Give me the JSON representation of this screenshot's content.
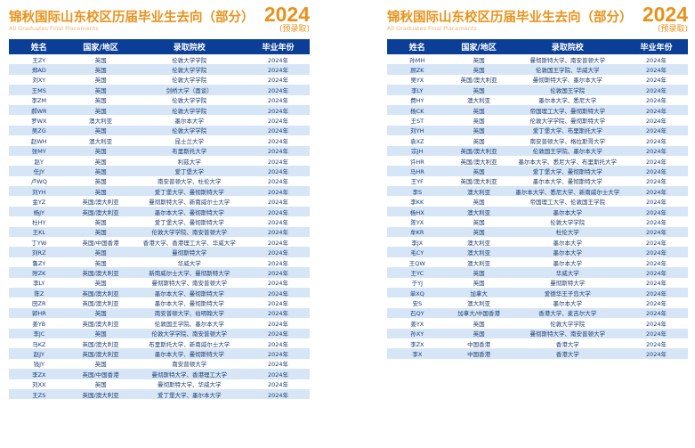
{
  "header": {
    "title": "锦秋国际山东校区历届毕业生去向（部分）",
    "subtitle": "All Graduates Final Placements",
    "year": "2024",
    "note": "(预录取)"
  },
  "columns": [
    "姓名",
    "国家/地区",
    "录取院校",
    "毕业年份"
  ],
  "left_rows": [
    [
      "王ZY",
      "英国",
      "伦敦大学学院",
      "2024年"
    ],
    [
      "郑AD",
      "英国",
      "伦敦大学学院",
      "2024年"
    ],
    [
      "刘XY",
      "英国",
      "伦敦大学学院",
      "2024年"
    ],
    [
      "王MS",
      "英国",
      "剑桥大学（面谈）",
      "2024年"
    ],
    [
      "李ZM",
      "英国",
      "伦敦大学学院",
      "2024年"
    ],
    [
      "郝WR",
      "英国",
      "伦敦大学学院",
      "2024年"
    ],
    [
      "罗WX",
      "澳大利亚",
      "墨尔本大学",
      "2024年"
    ],
    [
      "吴ZG",
      "英国",
      "伦敦大学学院",
      "2024年"
    ],
    [
      "赵WH",
      "澳大利亚",
      "昆士兰大学",
      "2024年"
    ],
    [
      "张MY",
      "英国",
      "布里斯托大学",
      "2024年"
    ],
    [
      "赵Y",
      "英国",
      "利兹大学",
      "2024年"
    ],
    [
      "任JY",
      "英国",
      "爱丁堡大学",
      "2024年"
    ],
    [
      "卢WQ",
      "英国",
      "南安普顿大学、杜伦大学",
      "2024年"
    ],
    [
      "刘YH",
      "英国",
      "爱丁堡大学、曼彻斯特大学",
      "2024年"
    ],
    [
      "金YZ",
      "英国/澳大利亚",
      "曼彻斯特大学、新南威尔士大学",
      "2024年"
    ],
    [
      "杨JY",
      "英国/澳大利亚",
      "墨尔本大学、曼彻斯特大学",
      "2024年"
    ],
    [
      "杜HY",
      "英国",
      "爱丁堡大学、曼彻斯特大学",
      "2024年"
    ],
    [
      "王KL",
      "英国",
      "伦敦大学学院、南安普顿大学",
      "2024年"
    ],
    [
      "丁YW",
      "英国/中国香港",
      "香港大学、香港理工大学、华威大学",
      "2024年"
    ],
    [
      "刘RZ",
      "英国",
      "曼彻斯特大学",
      "2024年"
    ],
    [
      "鲁ZY",
      "英国",
      "华威大学",
      "2024年"
    ],
    [
      "附ZK",
      "英国/澳大利亚",
      "新南威尔士大学、曼彻斯特大学",
      "2024年"
    ],
    [
      "李LY",
      "英国",
      "曼彻斯特大学、南安普顿大学",
      "2024年"
    ],
    [
      "陈Z",
      "英国/澳大利亚",
      "墨尔本大学、曼彻斯特大学",
      "2024年"
    ],
    [
      "田ZR",
      "英国/澳大利亚",
      "墨尔本大学、曼彻斯特大学",
      "2024年"
    ],
    [
      "郭HR",
      "英国",
      "南安普顿大学、伯明翰大学",
      "2024年"
    ],
    [
      "姜YB",
      "英国/澳大利亚",
      "伦敦国王学院、墨尔本大学",
      "2024年"
    ],
    [
      "李JC",
      "英国",
      "伦敦大学学院、南安普顿大学",
      "2024年"
    ],
    [
      "马KZ",
      "英国/澳大利亚",
      "布里斯托大学、新南威尔士大学",
      "2024年"
    ],
    [
      "赵JY",
      "英国/澳大利亚",
      "墨尔本大学、曼彻斯特大学",
      "2024年"
    ],
    [
      "钱JY",
      "英国",
      "南安普顿大学",
      "2024年"
    ],
    [
      "李ZX",
      "英国/中国香港",
      "曼彻斯特大学、香港理工大学",
      "2024年"
    ],
    [
      "刘XX",
      "英国",
      "曼彻斯特大学、华威大学",
      "2024年"
    ],
    [
      "王ZS",
      "英国/澳大利亚",
      "爱丁堡大学、墨尔本大学",
      "2024年"
    ]
  ],
  "right_rows": [
    [
      "孙MH",
      "英国",
      "曼彻斯特大学、南安普顿大学",
      "2024年"
    ],
    [
      "顾ZK",
      "英国",
      "伦敦国王学院、华威大学",
      "2024年"
    ],
    [
      "吴YX",
      "英国/澳大利亚",
      "曼彻斯特大学、墨尔本大学",
      "2024年"
    ],
    [
      "李LY",
      "英国",
      "伦敦国王学院",
      "2024年"
    ],
    [
      "费HY",
      "澳大利亚",
      "墨尔本大学、悉尼大学",
      "2024年"
    ],
    [
      "杨CK",
      "英国",
      "帝国理工大学、曼彻斯特大学",
      "2024年"
    ],
    [
      "王ST",
      "英国",
      "伦敦大学学院、曼彻斯特大学",
      "2024年"
    ],
    [
      "刘YH",
      "英国",
      "爱丁堡大学、布里斯托大学",
      "2024年"
    ],
    [
      "袁XZ",
      "英国",
      "南安普顿大学、格拉斯哥大学",
      "2024年"
    ],
    [
      "宗JH",
      "英国/澳大利亚",
      "伦敦国王学院、墨尔本大学",
      "2024年"
    ],
    [
      "许HR",
      "英国/澳大利亚",
      "墨尔本大学、悉尼大学、布里斯托大学",
      "2024年"
    ],
    [
      "马HR",
      "英国",
      "爱丁堡大学、曼彻斯特大学",
      "2024年"
    ],
    [
      "王YF",
      "英国/澳大利亚",
      "墨尔本大学、曼彻斯特大学",
      "2024年"
    ],
    [
      "李S",
      "澳大利亚",
      "墨尔本大学、悉尼大学、新南威尔士大学",
      "2024年"
    ],
    [
      "李KK",
      "英国",
      "帝国理工大学、伦敦国王学院",
      "2024年"
    ],
    [
      "杨HX",
      "澳大利亚",
      "墨尔本大学",
      "2024年"
    ],
    [
      "陈YX",
      "英国",
      "伦敦大学学院",
      "2024年"
    ],
    [
      "牟KR",
      "英国",
      "杜伦大学",
      "2024年"
    ],
    [
      "李JX",
      "澳大利亚",
      "墨尔本大学",
      "2024年"
    ],
    [
      "毛CY",
      "澳大利亚",
      "墨尔本大学",
      "2024年"
    ],
    [
      "王QW",
      "澳大利亚",
      "墨尔本大学",
      "2024年"
    ],
    [
      "王YC",
      "英国",
      "华威大学",
      "2024年"
    ],
    [
      "于YJ",
      "英国",
      "曼彻斯特大学",
      "2024年"
    ],
    [
      "单XQ",
      "加拿大",
      "爱德华王子岛大学",
      "2024年"
    ],
    [
      "安S",
      "澳大利亚",
      "墨尔本大学",
      "2024年"
    ],
    [
      "石QY",
      "加拿大/中国香港",
      "香港大学、麦吉尔大学",
      "2024年"
    ],
    [
      "姜YX",
      "英国",
      "伦敦大学学院",
      "2024年"
    ],
    [
      "孙XY",
      "英国",
      "曼彻斯特大学、南安普顿大学",
      "2024年"
    ],
    [
      "李ZX",
      "中国香港",
      "香港大学",
      "2024年"
    ],
    [
      "李X",
      "中国香港",
      "香港大学",
      "2024年"
    ]
  ]
}
